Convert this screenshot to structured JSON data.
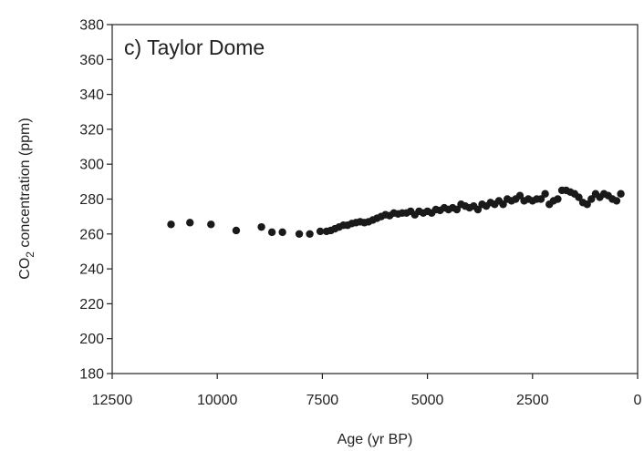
{
  "chart_data": {
    "type": "scatter",
    "title": "c) Taylor Dome",
    "xlabel": "Age (yr BP)",
    "ylabel_main": "CO",
    "ylabel_sub": "2",
    "ylabel_rest": " concentration (ppm)",
    "xlim": [
      12500,
      0
    ],
    "ylim": [
      180,
      380
    ],
    "x_ticks": [
      12500,
      10000,
      7500,
      5000,
      2500,
      0
    ],
    "y_ticks": [
      180,
      200,
      220,
      240,
      260,
      280,
      300,
      320,
      340,
      360,
      380
    ],
    "grid": false,
    "legend": "none",
    "marker_color": "#1a1a1a",
    "series": [
      {
        "x": [
          11100,
          10650,
          10150,
          9550,
          8950,
          8700,
          8450,
          8050,
          7800,
          7550,
          7400,
          7300,
          7200,
          7100,
          7000,
          6900,
          6800,
          6700,
          6600,
          6500,
          6400,
          6300,
          6200,
          6100,
          6000,
          5900,
          5800,
          5700,
          5600,
          5500,
          5400,
          5300,
          5200,
          5100,
          5000,
          4900,
          4800,
          4700,
          4600,
          4500,
          4400,
          4300,
          4200,
          4100,
          4000,
          3900,
          3800,
          3700,
          3600,
          3500,
          3400,
          3300,
          3200,
          3100,
          3000,
          2900,
          2800,
          2700,
          2600,
          2500,
          2400,
          2300,
          2200,
          2100,
          2000,
          1900,
          1800,
          1700,
          1600,
          1500,
          1400,
          1300,
          1200,
          1100,
          1000,
          900,
          800,
          700,
          600,
          500,
          400
        ],
        "y": [
          265.5,
          266.5,
          265.5,
          262,
          264,
          261,
          261,
          260,
          260,
          261.5,
          261.5,
          262,
          263,
          264,
          265,
          265,
          266,
          266.5,
          267,
          266.5,
          267,
          268,
          269,
          270,
          271,
          270.5,
          272,
          271.5,
          272,
          272,
          273,
          271,
          273,
          272,
          273,
          272,
          274,
          273.5,
          275,
          274,
          275,
          274,
          277,
          276,
          275,
          276,
          274,
          277,
          276,
          278,
          277,
          279,
          277,
          280,
          279,
          280,
          282,
          279,
          280,
          279,
          280,
          280,
          283,
          277,
          279,
          280,
          285,
          285,
          284,
          283,
          281,
          278,
          277,
          280,
          283,
          281,
          283,
          282,
          280,
          279,
          283
        ]
      }
    ]
  }
}
